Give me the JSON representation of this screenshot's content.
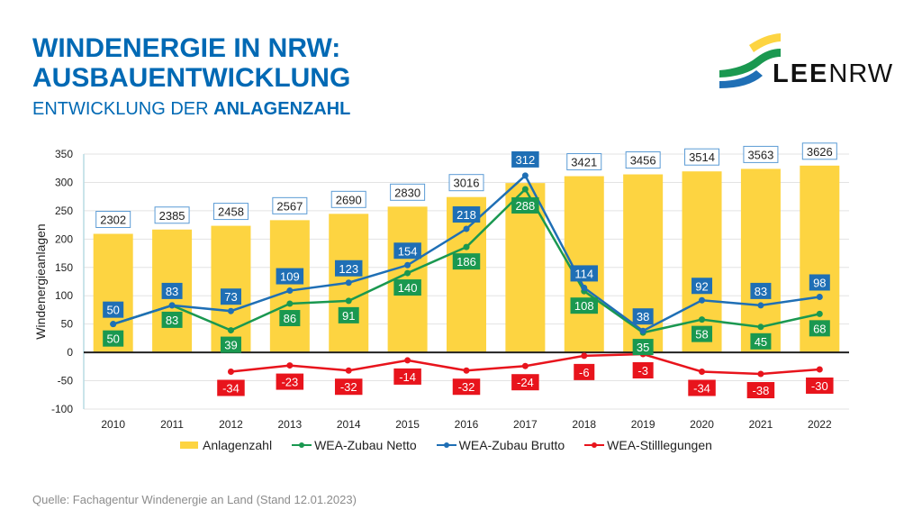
{
  "header": {
    "title_line1": "WINDENERGIE IN NRW:",
    "title_line2": "AUSBAUENTWICKLUNG",
    "subtitle_regular": "ENTWICKLUNG DER ",
    "subtitle_bold": "ANLAGENZAHL"
  },
  "logo": {
    "text_bold": "LEE",
    "text_regular": "NRW"
  },
  "source": "Quelle: Fachagentur Windenergie an Land (Stand 12.01.2023)",
  "colors": {
    "title": "#0069b4",
    "bar": "#fdd441",
    "netto": "#1a9850",
    "brutto": "#1f6fb5",
    "stilllegungen": "#e8141c"
  },
  "chart_data": {
    "type": "bar+line",
    "title": "",
    "xlabel": "",
    "ylabel": "Windenergieanlagen",
    "ylim": [
      -100,
      350
    ],
    "yticks": [
      -100,
      -50,
      0,
      50,
      100,
      150,
      200,
      250,
      300,
      350
    ],
    "grid": true,
    "legend_position": "bottom",
    "categories": [
      "2010",
      "2011",
      "2012",
      "2013",
      "2014",
      "2015",
      "2016",
      "2017",
      "2018",
      "2019",
      "2020",
      "2021",
      "2022"
    ],
    "series": [
      {
        "name": "Anlagenzahl",
        "type": "bar",
        "axis": "secondary-scaled",
        "values": [
          2302,
          2385,
          2458,
          2567,
          2690,
          2830,
          3016,
          3288,
          3421,
          3456,
          3514,
          3563,
          3626
        ],
        "labels": [
          "2302",
          "2385",
          "2458",
          "2567",
          "2690",
          "2830",
          "3016",
          "",
          "3421",
          "3456",
          "3514",
          "3563",
          "3626"
        ]
      },
      {
        "name": "WEA-Zubau Netto",
        "type": "line",
        "values": [
          50,
          83,
          39,
          86,
          91,
          140,
          186,
          288,
          108,
          35,
          58,
          45,
          68
        ]
      },
      {
        "name": "WEA-Zubau Brutto",
        "type": "line",
        "values": [
          50,
          83,
          73,
          109,
          123,
          154,
          218,
          312,
          114,
          38,
          92,
          83,
          98
        ]
      },
      {
        "name": "WEA-Stilllegungen",
        "type": "line",
        "values": [
          null,
          null,
          -34,
          -23,
          -32,
          -14,
          -32,
          -24,
          -6,
          -3,
          -34,
          -38,
          -30
        ]
      }
    ]
  }
}
